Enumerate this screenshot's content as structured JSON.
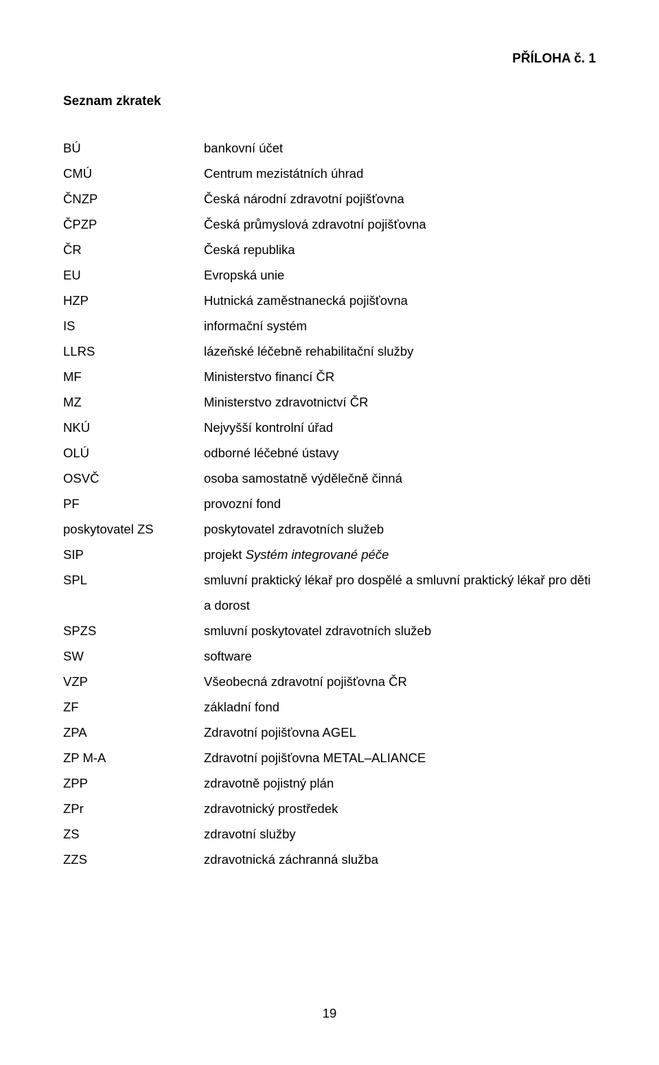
{
  "header": {
    "annex": "PŘÍLOHA č. 1"
  },
  "title": "Seznam zkratek",
  "abbreviations": [
    {
      "abbr": "BÚ",
      "def": "bankovní účet"
    },
    {
      "abbr": "CMÚ",
      "def": "Centrum mezistátních úhrad"
    },
    {
      "abbr": "ČNZP",
      "def": "Česká národní zdravotní pojišťovna"
    },
    {
      "abbr": "ČPZP",
      "def": "Česká průmyslová zdravotní pojišťovna"
    },
    {
      "abbr": "ČR",
      "def": "Česká republika"
    },
    {
      "abbr": "EU",
      "def": "Evropská unie"
    },
    {
      "abbr": "HZP",
      "def": "Hutnická zaměstnanecká pojišťovna"
    },
    {
      "abbr": "IS",
      "def": "informační systém"
    },
    {
      "abbr": "LLRS",
      "def": "lázeňské léčebně rehabilitační služby"
    },
    {
      "abbr": "MF",
      "def": "Ministerstvo financí ČR"
    },
    {
      "abbr": "MZ",
      "def": "Ministerstvo zdravotnictví ČR"
    },
    {
      "abbr": "NKÚ",
      "def": "Nejvyšší kontrolní úřad"
    },
    {
      "abbr": "OLÚ",
      "def": "odborné léčebné ústavy"
    },
    {
      "abbr": "OSVČ",
      "def": "osoba samostatně výdělečně činná"
    },
    {
      "abbr": "PF",
      "def": "provozní fond"
    },
    {
      "abbr": "poskytovatel ZS",
      "def": "poskytovatel zdravotních služeb"
    },
    {
      "abbr": "SIP",
      "def_prefix": "projekt ",
      "def_italic": "Systém integrované péče"
    },
    {
      "abbr": "SPL",
      "def": "smluvní praktický lékař pro dospělé a smluvní praktický lékař pro děti a dorost"
    },
    {
      "abbr": "SPZS",
      "def": "smluvní poskytovatel zdravotních služeb"
    },
    {
      "abbr": "SW",
      "def": "software"
    },
    {
      "abbr": "VZP",
      "def": "Všeobecná zdravotní pojišťovna ČR"
    },
    {
      "abbr": "ZF",
      "def": "základní fond"
    },
    {
      "abbr": "ZPA",
      "def": "Zdravotní pojišťovna AGEL"
    },
    {
      "abbr": "ZP M-A",
      "def": "Zdravotní pojišťovna METAL–ALIANCE"
    },
    {
      "abbr": "ZPP",
      "def": "zdravotně pojistný plán"
    },
    {
      "abbr": "ZPr",
      "def": "zdravotnický prostředek"
    },
    {
      "abbr": "ZS",
      "def": "zdravotní služby"
    },
    {
      "abbr": "ZZS",
      "def": "zdravotnická záchranná služba"
    }
  ],
  "page_number": "19",
  "style": {
    "background_color": "#ffffff",
    "text_color": "#000000",
    "font_family": "Arial, Helvetica, sans-serif",
    "title_fontsize": 19,
    "body_fontsize": 18.5,
    "line_height": 37,
    "abbrev_col_width": 205
  }
}
